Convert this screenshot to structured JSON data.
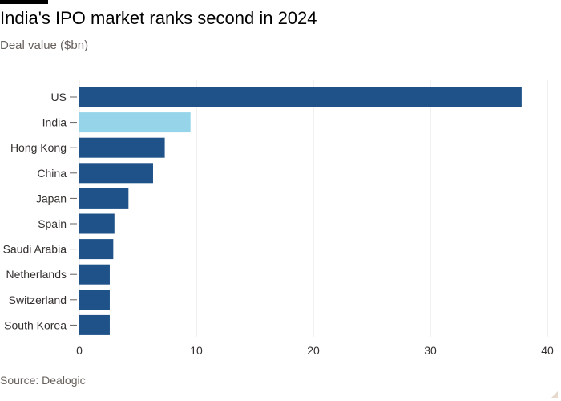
{
  "title": "India's IPO market ranks second in 2024",
  "subtitle": "Deal value ($bn)",
  "source": "Source: Dealogic",
  "colors": {
    "bar": "#1f5289",
    "highlight": "#96d4ea",
    "grid": "#e6e3e0",
    "text": "#33302e"
  },
  "chart_data": {
    "type": "bar",
    "orientation": "horizontal",
    "categories": [
      "US",
      "India",
      "Hong Kong",
      "China",
      "Japan",
      "Spain",
      "Saudi Arabia",
      "Netherlands",
      "Switzerland",
      "South Korea"
    ],
    "values": [
      37.8,
      9.5,
      7.3,
      6.3,
      4.2,
      3.0,
      2.9,
      2.6,
      2.6,
      2.6
    ],
    "highlight": "India",
    "title": "India's IPO market ranks second in 2024",
    "subtitle": "Deal value ($bn)",
    "xlim": [
      0,
      40
    ],
    "xticks": [
      0,
      10,
      20,
      30,
      40
    ],
    "grid": true
  }
}
